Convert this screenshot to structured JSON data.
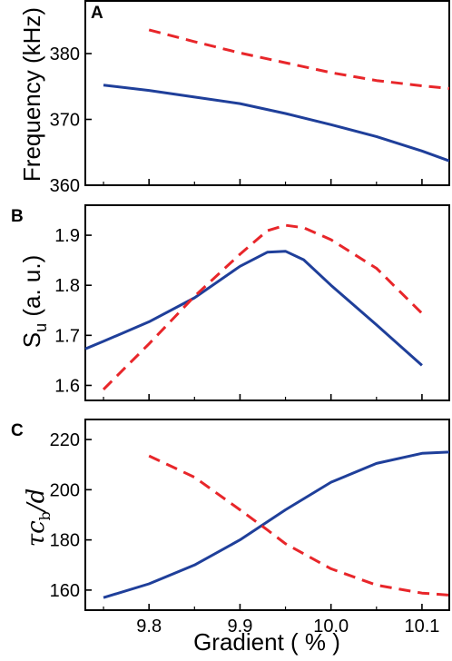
{
  "figure": {
    "xlabel": "Gradient ( % )",
    "x_ticks": [
      "9.8",
      "9.9",
      "10.0",
      "10.1"
    ]
  },
  "chart_data": [
    {
      "panel_label": "A",
      "type": "line",
      "ylabel": "Frequency (kHz)",
      "xlim": [
        9.73,
        10.13
      ],
      "ylim": [
        360,
        388
      ],
      "y_ticks": [
        360,
        370,
        380
      ],
      "x_ticks": [
        9.8,
        9.9,
        10.0,
        10.1
      ],
      "grid": false,
      "legend": "none",
      "series": [
        {
          "color": "#1f3f9a",
          "style": "solid",
          "x": [
            9.75,
            9.8,
            9.85,
            9.9,
            9.95,
            10.0,
            10.05,
            10.1,
            10.13
          ],
          "y": [
            375.2,
            374.4,
            373.4,
            372.4,
            370.9,
            369.2,
            367.4,
            365.2,
            363.7
          ]
        },
        {
          "color": "#e8262a",
          "style": "dashed",
          "x": [
            9.8,
            9.85,
            9.9,
            9.95,
            10.0,
            10.05,
            10.1,
            10.13
          ],
          "y": [
            383.6,
            381.8,
            380.1,
            378.6,
            377.1,
            375.9,
            375.1,
            374.7
          ]
        }
      ]
    },
    {
      "panel_label": "B",
      "type": "line",
      "ylabel": "S_u (a. u.)",
      "ylabel_main": "S",
      "ylabel_sub": "u",
      "ylabel_rest": " (a. u.)",
      "xlim": [
        9.73,
        10.13
      ],
      "ylim": [
        1.57,
        1.96
      ],
      "y_ticks": [
        1.6,
        1.7,
        1.8,
        1.9
      ],
      "x_ticks": [
        9.8,
        9.9,
        10.0,
        10.1
      ],
      "grid": false,
      "legend": "none",
      "series": [
        {
          "color": "#1f3f9a",
          "style": "solid",
          "x": [
            9.73,
            9.75,
            9.8,
            9.85,
            9.9,
            9.93,
            9.95,
            9.97,
            10.0,
            10.05,
            10.1
          ],
          "y": [
            1.673,
            1.688,
            1.727,
            1.775,
            1.838,
            1.866,
            1.868,
            1.851,
            1.8,
            1.721,
            1.64
          ]
        },
        {
          "color": "#e8262a",
          "style": "dashed",
          "x": [
            9.75,
            9.8,
            9.85,
            9.9,
            9.93,
            9.95,
            9.97,
            10.0,
            10.05,
            10.1
          ],
          "y": [
            1.592,
            1.683,
            1.778,
            1.862,
            1.909,
            1.92,
            1.915,
            1.891,
            1.834,
            1.744
          ]
        }
      ]
    },
    {
      "panel_label": "C",
      "type": "line",
      "ylabel_tau": "τc",
      "ylabel_sub": "b",
      "ylabel_rest": "/d",
      "xlim": [
        9.73,
        10.13
      ],
      "ylim": [
        152,
        228
      ],
      "y_ticks": [
        160,
        180,
        200,
        220
      ],
      "x_ticks": [
        9.8,
        9.9,
        10.0,
        10.1
      ],
      "grid": false,
      "legend": "none",
      "series": [
        {
          "color": "#1f3f9a",
          "style": "solid",
          "x": [
            9.75,
            9.8,
            9.85,
            9.9,
            9.95,
            10.0,
            10.05,
            10.1,
            10.13
          ],
          "y": [
            157,
            162.5,
            170,
            180,
            192,
            203,
            210.5,
            214.5,
            215
          ]
        },
        {
          "color": "#e8262a",
          "style": "dashed",
          "x": [
            9.8,
            9.85,
            9.9,
            9.93,
            9.95,
            10.0,
            10.05,
            10.1,
            10.13
          ],
          "y": [
            213.5,
            205,
            192,
            184,
            178.5,
            168.5,
            162,
            158.8,
            158
          ]
        }
      ]
    }
  ]
}
